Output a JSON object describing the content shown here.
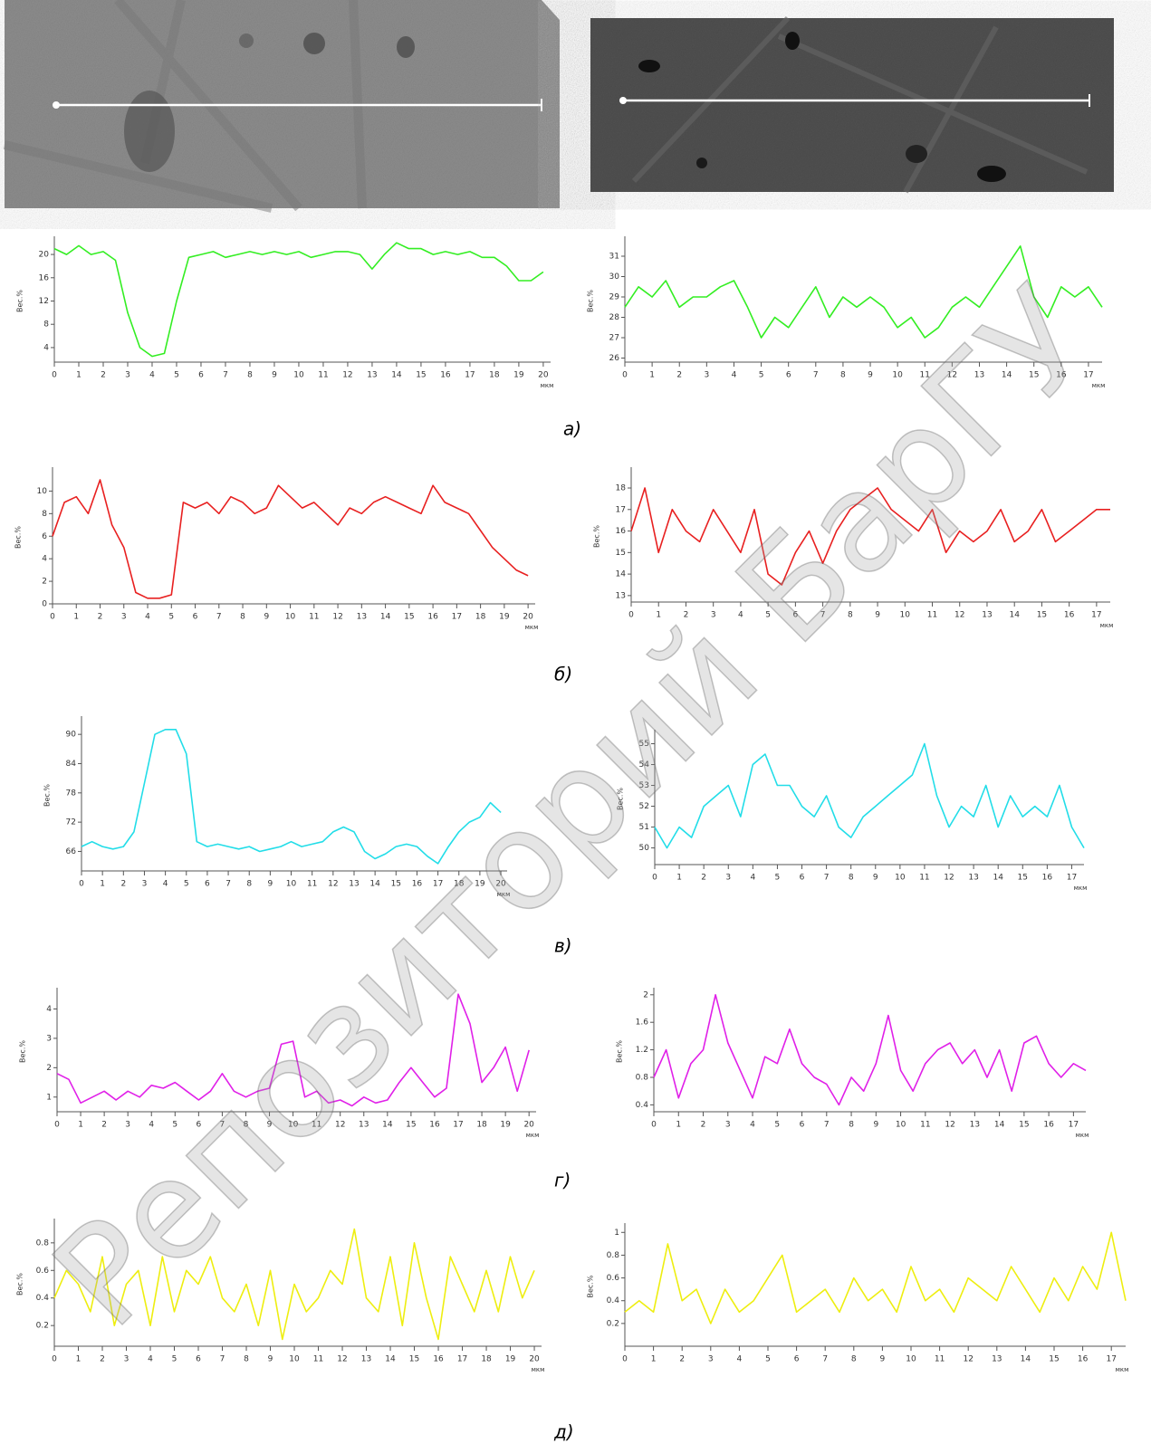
{
  "chart_data": [
    {
      "type": "line",
      "ylabel": "Вес.%",
      "xlabel": "мкм",
      "color": "#33ee22",
      "xlim": [
        0,
        20.3
      ],
      "ylim": [
        1.5,
        22.5
      ],
      "xticks": [
        0,
        1,
        2,
        3,
        4,
        5,
        6,
        7,
        8,
        9,
        10,
        11,
        12,
        13,
        14,
        15,
        16,
        17,
        18,
        19,
        20
      ],
      "yticks": [
        4,
        8,
        12,
        16,
        20
      ],
      "x": [
        0,
        0.5,
        1,
        1.5,
        2,
        2.5,
        3,
        3.5,
        4,
        4.5,
        5,
        5.5,
        6,
        6.5,
        7,
        7.5,
        8,
        8.5,
        9,
        9.5,
        10,
        10.5,
        11,
        11.5,
        12,
        12.5,
        13,
        13.5,
        14,
        14.5,
        15,
        15.5,
        16,
        16.5,
        17,
        17.5,
        18,
        18.5,
        19,
        19.5,
        20
      ],
      "values": [
        21,
        20,
        21.5,
        20,
        20.5,
        19,
        10,
        4,
        2.5,
        3,
        12,
        19.5,
        20,
        20.5,
        19.5,
        20,
        20.5,
        20,
        20.5,
        20,
        20.5,
        19.5,
        20,
        20.5,
        20.5,
        20,
        17.5,
        20,
        22,
        21,
        21,
        20,
        20.5,
        20,
        20.5,
        19.5,
        19.5,
        18,
        15.5,
        15.5,
        17
      ]
    },
    {
      "type": "line",
      "ylabel": "Вес.%",
      "xlabel": "мкм",
      "color": "#33ee22",
      "xlim": [
        0,
        17.5
      ],
      "ylim": [
        25.8,
        31.8
      ],
      "xticks": [
        0,
        1,
        2,
        3,
        4,
        5,
        6,
        7,
        8,
        9,
        10,
        11,
        12,
        13,
        14,
        15,
        16,
        17
      ],
      "yticks": [
        26,
        27,
        28,
        29,
        30,
        31
      ],
      "x": [
        0,
        0.5,
        1,
        1.5,
        2,
        2.5,
        3,
        3.5,
        4,
        4.5,
        5,
        5.5,
        6,
        6.5,
        7,
        7.5,
        8,
        8.5,
        9,
        9.5,
        10,
        10.5,
        11,
        11.5,
        12,
        12.5,
        13,
        13.5,
        14,
        14.5,
        15,
        15.5,
        16,
        16.5,
        17,
        17.5
      ],
      "values": [
        28.5,
        29.5,
        29,
        29.8,
        28.5,
        29,
        29,
        29.5,
        29.8,
        28.5,
        27,
        28,
        27.5,
        28.5,
        29.5,
        28,
        29,
        28.5,
        29,
        28.5,
        27.5,
        28,
        27,
        27.5,
        28.5,
        29,
        28.5,
        29.5,
        30.5,
        31.5,
        29,
        28,
        29.5,
        29,
        29.5,
        28.5
      ]
    },
    {
      "type": "line",
      "ylabel": "Вес.%",
      "xlabel": "мкм",
      "color": "#e82020",
      "xlim": [
        0,
        20.3
      ],
      "ylim": [
        0,
        11.8
      ],
      "xticks": [
        0,
        1,
        2,
        3,
        4,
        5,
        6,
        7,
        8,
        9,
        10,
        11,
        12,
        13,
        14,
        15,
        16,
        17,
        18,
        19,
        20
      ],
      "yticks": [
        0,
        2,
        4,
        6,
        8,
        10
      ],
      "x": [
        0,
        0.5,
        1,
        1.5,
        2,
        2.5,
        3,
        3.5,
        4,
        4.5,
        5,
        5.5,
        6,
        6.5,
        7,
        7.5,
        8,
        8.5,
        9,
        9.5,
        10,
        10.5,
        11,
        11.5,
        12,
        12.5,
        13,
        13.5,
        14,
        14.5,
        15,
        15.5,
        16,
        16.5,
        17,
        17.5,
        18,
        18.5,
        19,
        19.5,
        20
      ],
      "values": [
        6,
        9,
        9.5,
        8,
        11,
        7,
        5,
        1,
        0.5,
        0.5,
        0.8,
        9,
        8.5,
        9,
        8,
        9.5,
        9,
        8,
        8.5,
        10.5,
        9.5,
        8.5,
        9,
        8,
        7,
        8.5,
        8,
        9,
        9.5,
        9,
        8.5,
        8,
        10.5,
        9,
        8.5,
        8,
        6.5,
        5,
        4,
        3,
        2.5
      ]
    },
    {
      "type": "line",
      "ylabel": "Вес.%",
      "xlabel": "мкм",
      "color": "#e82020",
      "xlim": [
        0,
        17.5
      ],
      "ylim": [
        12.7,
        18.8
      ],
      "xticks": [
        0,
        1,
        2,
        3,
        4,
        5,
        6,
        7,
        8,
        9,
        10,
        11,
        12,
        13,
        14,
        15,
        16,
        17
      ],
      "yticks": [
        13,
        14,
        15,
        16,
        17,
        18
      ],
      "x": [
        0,
        0.5,
        1,
        1.5,
        2,
        2.5,
        3,
        3.5,
        4,
        4.5,
        5,
        5.5,
        6,
        6.5,
        7,
        7.5,
        8,
        8.5,
        9,
        9.5,
        10,
        10.5,
        11,
        11.5,
        12,
        12.5,
        13,
        13.5,
        14,
        14.5,
        15,
        15.5,
        16,
        16.5,
        17,
        17.5
      ],
      "values": [
        16,
        18,
        15,
        17,
        16,
        15.5,
        17,
        16,
        15,
        17,
        14,
        13.5,
        15,
        16,
        14.5,
        16,
        17,
        17.5,
        18,
        17,
        16.5,
        16,
        17,
        15,
        16,
        15.5,
        16,
        17,
        15.5,
        16,
        17,
        15.5,
        16,
        16.5,
        17,
        17
      ]
    },
    {
      "type": "line",
      "ylabel": "Вес.%",
      "xlabel": "мкм",
      "color": "#22dde8",
      "xlim": [
        0,
        20.3
      ],
      "ylim": [
        62,
        93
      ],
      "xticks": [
        0,
        1,
        2,
        3,
        4,
        5,
        6,
        7,
        8,
        9,
        10,
        11,
        12,
        13,
        14,
        15,
        16,
        17,
        18,
        19,
        20
      ],
      "yticks": [
        66,
        72,
        78,
        84,
        90
      ],
      "x": [
        0,
        0.5,
        1,
        1.5,
        2,
        2.5,
        3,
        3.5,
        4,
        4.5,
        5,
        5.5,
        6,
        6.5,
        7,
        7.5,
        8,
        8.5,
        9,
        9.5,
        10,
        10.5,
        11,
        11.5,
        12,
        12.5,
        13,
        13.5,
        14,
        14.5,
        15,
        15.5,
        16,
        16.5,
        17,
        17.5,
        18,
        18.5,
        19,
        19.5,
        20
      ],
      "values": [
        67,
        68,
        67,
        66.5,
        67,
        70,
        80,
        90,
        91,
        91,
        86,
        68,
        67,
        67.5,
        67,
        66.5,
        67,
        66,
        66.5,
        67,
        68,
        67,
        67.5,
        68,
        70,
        71,
        70,
        66,
        64.5,
        65.5,
        67,
        67.5,
        67,
        65,
        63.5,
        67,
        70,
        72,
        73,
        76,
        74
      ]
    },
    {
      "type": "line",
      "ylabel": "Вес.%",
      "xlabel": "мкм",
      "color": "#22dde8",
      "xlim": [
        0,
        17.5
      ],
      "ylim": [
        49.2,
        55.5
      ],
      "xticks": [
        0,
        1,
        2,
        3,
        4,
        5,
        6,
        7,
        8,
        9,
        10,
        11,
        12,
        13,
        14,
        15,
        16,
        17
      ],
      "yticks": [
        50,
        51,
        52,
        53,
        54,
        55
      ],
      "x": [
        0,
        0.5,
        1,
        1.5,
        2,
        2.5,
        3,
        3.5,
        4,
        4.5,
        5,
        5.5,
        6,
        6.5,
        7,
        7.5,
        8,
        8.5,
        9,
        9.5,
        10,
        10.5,
        11,
        11.5,
        12,
        12.5,
        13,
        13.5,
        14,
        14.5,
        15,
        15.5,
        16,
        16.5,
        17,
        17.5
      ],
      "values": [
        51,
        50,
        51,
        50.5,
        52,
        52.5,
        53,
        51.5,
        54,
        54.5,
        53,
        53,
        52,
        51.5,
        52.5,
        51,
        50.5,
        51.5,
        52,
        52.5,
        53,
        53.5,
        55,
        52.5,
        51,
        52,
        51.5,
        53,
        51,
        52.5,
        51.5,
        52,
        51.5,
        53,
        51,
        50
      ]
    },
    {
      "type": "line",
      "ylabel": "Вес.%",
      "xlabel": "мкм",
      "color": "#e020e8",
      "xlim": [
        0,
        20.3
      ],
      "ylim": [
        0.5,
        4.6
      ],
      "xticks": [
        0,
        1,
        2,
        3,
        4,
        5,
        6,
        7,
        8,
        9,
        10,
        11,
        12,
        13,
        14,
        15,
        16,
        17,
        18,
        19,
        20
      ],
      "yticks": [
        1,
        2,
        3,
        4
      ],
      "x": [
        0,
        0.5,
        1,
        1.5,
        2,
        2.5,
        3,
        3.5,
        4,
        4.5,
        5,
        5.5,
        6,
        6.5,
        7,
        7.5,
        8,
        8.5,
        9,
        9.5,
        10,
        10.5,
        11,
        11.5,
        12,
        12.5,
        13,
        13.5,
        14,
        14.5,
        15,
        15.5,
        16,
        16.5,
        17,
        17.5,
        18,
        18.5,
        19,
        19.5,
        20
      ],
      "values": [
        1.8,
        1.6,
        0.8,
        1,
        1.2,
        0.9,
        1.2,
        1,
        1.4,
        1.3,
        1.5,
        1.2,
        0.9,
        1.2,
        1.8,
        1.2,
        1,
        1.2,
        1.3,
        2.8,
        2.9,
        1,
        1.2,
        0.8,
        0.9,
        0.7,
        1,
        0.8,
        0.9,
        1.5,
        2,
        1.5,
        1,
        1.3,
        4.5,
        3.5,
        1.5,
        2,
        2.7,
        1.2,
        2.6
      ]
    },
    {
      "type": "line",
      "ylabel": "Вес.%",
      "xlabel": "мкм",
      "color": "#e020e8",
      "xlim": [
        0,
        17.5
      ],
      "ylim": [
        0.3,
        2.05
      ],
      "xticks": [
        0,
        1,
        2,
        3,
        4,
        5,
        6,
        7,
        8,
        9,
        10,
        11,
        12,
        13,
        14,
        15,
        16,
        17
      ],
      "yticks": [
        0.4,
        0.8,
        1.2,
        1.6,
        2
      ],
      "x": [
        0,
        0.5,
        1,
        1.5,
        2,
        2.5,
        3,
        3.5,
        4,
        4.5,
        5,
        5.5,
        6,
        6.5,
        7,
        7.5,
        8,
        8.5,
        9,
        9.5,
        10,
        10.5,
        11,
        11.5,
        12,
        12.5,
        13,
        13.5,
        14,
        14.5,
        15,
        15.5,
        16,
        16.5,
        17,
        17.5
      ],
      "values": [
        0.8,
        1.2,
        0.5,
        1,
        1.2,
        2,
        1.3,
        0.9,
        0.5,
        1.1,
        1,
        1.5,
        1,
        0.8,
        0.7,
        0.4,
        0.8,
        0.6,
        1,
        1.7,
        0.9,
        0.6,
        1,
        1.2,
        1.3,
        1,
        1.2,
        0.8,
        1.2,
        0.6,
        1.3,
        1.4,
        1,
        0.8,
        1,
        0.9
      ]
    },
    {
      "type": "line",
      "ylabel": "Вес.%",
      "xlabel": "мкм",
      "color": "#eeee10",
      "xlim": [
        0,
        20.3
      ],
      "ylim": [
        0.05,
        0.95
      ],
      "xticks": [
        0,
        1,
        2,
        3,
        4,
        5,
        6,
        7,
        8,
        9,
        10,
        11,
        12,
        13,
        14,
        15,
        16,
        17,
        18,
        19,
        20
      ],
      "yticks": [
        0.2,
        0.4,
        0.6,
        0.8
      ],
      "x": [
        0,
        0.5,
        1,
        1.5,
        2,
        2.5,
        3,
        3.5,
        4,
        4.5,
        5,
        5.5,
        6,
        6.5,
        7,
        7.5,
        8,
        8.5,
        9,
        9.5,
        10,
        10.5,
        11,
        11.5,
        12,
        12.5,
        13,
        13.5,
        14,
        14.5,
        15,
        15.5,
        16,
        16.5,
        17,
        17.5,
        18,
        18.5,
        19,
        19.5,
        20
      ],
      "values": [
        0.4,
        0.6,
        0.5,
        0.3,
        0.7,
        0.2,
        0.5,
        0.6,
        0.2,
        0.7,
        0.3,
        0.6,
        0.5,
        0.7,
        0.4,
        0.3,
        0.5,
        0.2,
        0.6,
        0.1,
        0.5,
        0.3,
        0.4,
        0.6,
        0.5,
        0.9,
        0.4,
        0.3,
        0.7,
        0.2,
        0.8,
        0.4,
        0.1,
        0.7,
        0.5,
        0.3,
        0.6,
        0.3,
        0.7,
        0.4,
        0.6
      ]
    },
    {
      "type": "line",
      "ylabel": "Вес.%",
      "xlabel": "мкм",
      "color": "#eeee10",
      "xlim": [
        0,
        17.5
      ],
      "ylim": [
        0,
        1.05
      ],
      "xticks": [
        0,
        1,
        2,
        3,
        4,
        5,
        6,
        7,
        8,
        9,
        10,
        11,
        12,
        13,
        14,
        15,
        16,
        17
      ],
      "yticks": [
        0.2,
        0.4,
        0.6,
        0.8,
        1
      ],
      "x": [
        0,
        0.5,
        1,
        1.5,
        2,
        2.5,
        3,
        3.5,
        4,
        4.5,
        5,
        5.5,
        6,
        6.5,
        7,
        7.5,
        8,
        8.5,
        9,
        9.5,
        10,
        10.5,
        11,
        11.5,
        12,
        12.5,
        13,
        13.5,
        14,
        14.5,
        15,
        15.5,
        16,
        16.5,
        17,
        17.5
      ],
      "values": [
        0.3,
        0.4,
        0.3,
        0.9,
        0.4,
        0.5,
        0.2,
        0.5,
        0.3,
        0.4,
        0.6,
        0.8,
        0.3,
        0.4,
        0.5,
        0.3,
        0.6,
        0.4,
        0.5,
        0.3,
        0.7,
        0.4,
        0.5,
        0.3,
        0.6,
        0.5,
        0.4,
        0.7,
        0.5,
        0.3,
        0.6,
        0.4,
        0.7,
        0.5,
        1,
        0.4
      ]
    }
  ],
  "panel_labels": [
    "а)",
    "б)",
    "в)",
    "г)",
    "д)"
  ],
  "watermark": "Репозиторий БарГУ"
}
